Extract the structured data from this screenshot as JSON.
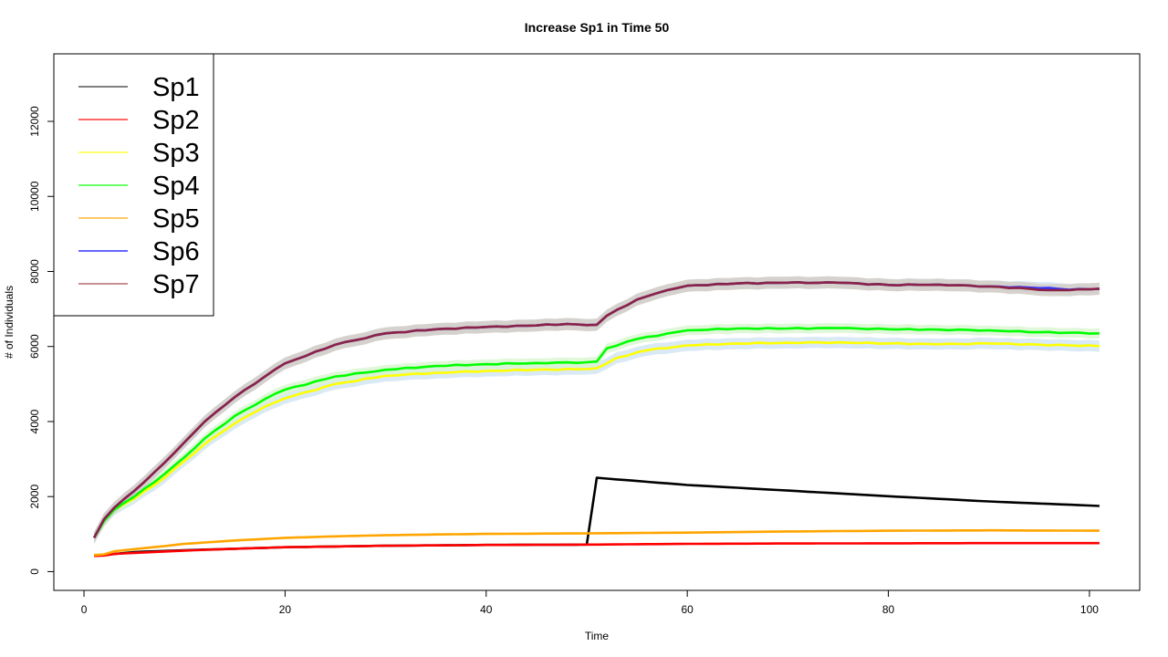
{
  "chart_data": {
    "type": "line",
    "title": "Increase Sp1 in Time 50",
    "xlabel": "Time",
    "ylabel": "# of Individuals",
    "xlim": [
      -3,
      105
    ],
    "ylim": [
      -500,
      13800
    ],
    "x_ticks": [
      0,
      20,
      40,
      60,
      80,
      100
    ],
    "y_ticks": [
      0,
      2000,
      4000,
      6000,
      8000,
      10000,
      12000
    ],
    "grid": false,
    "legend_position": "top-left",
    "series": [
      {
        "name": "Sp1",
        "color": "#000000",
        "legend_color": "#808080",
        "band_color": "#cfcfcf",
        "band": 0,
        "points": [
          [
            1,
            420
          ],
          [
            5,
            520
          ],
          [
            10,
            570
          ],
          [
            20,
            650
          ],
          [
            30,
            690
          ],
          [
            40,
            710
          ],
          [
            50,
            720
          ],
          [
            51,
            2500
          ],
          [
            60,
            2310
          ],
          [
            70,
            2160
          ],
          [
            80,
            2010
          ],
          [
            90,
            1870
          ],
          [
            101,
            1750
          ]
        ]
      },
      {
        "name": "Sp2",
        "color": "#ff0000",
        "legend_color": "#ff6666",
        "band_color": "#ffc4c4",
        "band": 20,
        "points": [
          [
            1,
            420
          ],
          [
            2,
            430
          ],
          [
            3,
            470
          ],
          [
            5,
            500
          ],
          [
            10,
            560
          ],
          [
            15,
            610
          ],
          [
            20,
            650
          ],
          [
            30,
            690
          ],
          [
            40,
            710
          ],
          [
            50,
            720
          ],
          [
            60,
            740
          ],
          [
            70,
            750
          ],
          [
            80,
            755
          ],
          [
            90,
            760
          ],
          [
            101,
            760
          ]
        ]
      },
      {
        "name": "Sp3",
        "color": "#ffff00",
        "legend_color": "#ffff66",
        "band_color": "#cfe3f2",
        "band": 150,
        "points": [
          [
            1,
            900
          ],
          [
            2,
            1350
          ],
          [
            3,
            1650
          ],
          [
            5,
            1950
          ],
          [
            8,
            2500
          ],
          [
            10,
            2950
          ],
          [
            12,
            3400
          ],
          [
            15,
            3950
          ],
          [
            18,
            4400
          ],
          [
            20,
            4620
          ],
          [
            25,
            5000
          ],
          [
            30,
            5220
          ],
          [
            35,
            5300
          ],
          [
            40,
            5350
          ],
          [
            45,
            5380
          ],
          [
            50,
            5400
          ],
          [
            51,
            5420
          ],
          [
            53,
            5700
          ],
          [
            56,
            5900
          ],
          [
            60,
            6030
          ],
          [
            65,
            6080
          ],
          [
            70,
            6100
          ],
          [
            75,
            6110
          ],
          [
            80,
            6080
          ],
          [
            85,
            6060
          ],
          [
            90,
            6080
          ],
          [
            95,
            6050
          ],
          [
            101,
            6010
          ]
        ]
      },
      {
        "name": "Sp4",
        "color": "#00ff00",
        "legend_color": "#66ff66",
        "band_color": "#d9f5d0",
        "band": 130,
        "points": [
          [
            1,
            900
          ],
          [
            2,
            1350
          ],
          [
            3,
            1650
          ],
          [
            5,
            2000
          ],
          [
            8,
            2600
          ],
          [
            10,
            3050
          ],
          [
            12,
            3550
          ],
          [
            15,
            4150
          ],
          [
            18,
            4600
          ],
          [
            20,
            4850
          ],
          [
            25,
            5200
          ],
          [
            30,
            5380
          ],
          [
            35,
            5480
          ],
          [
            40,
            5530
          ],
          [
            45,
            5560
          ],
          [
            50,
            5580
          ],
          [
            51,
            5600
          ],
          [
            52,
            5950
          ],
          [
            55,
            6200
          ],
          [
            60,
            6430
          ],
          [
            65,
            6480
          ],
          [
            70,
            6480
          ],
          [
            75,
            6490
          ],
          [
            80,
            6460
          ],
          [
            85,
            6450
          ],
          [
            90,
            6430
          ],
          [
            95,
            6380
          ],
          [
            101,
            6350
          ]
        ]
      },
      {
        "name": "Sp5",
        "color": "#ffa500",
        "legend_color": "#ffc966",
        "band_color": "#ffe4b3",
        "band": 20,
        "points": [
          [
            1,
            440
          ],
          [
            2,
            460
          ],
          [
            3,
            540
          ],
          [
            5,
            600
          ],
          [
            8,
            680
          ],
          [
            10,
            740
          ],
          [
            15,
            830
          ],
          [
            20,
            900
          ],
          [
            25,
            940
          ],
          [
            30,
            970
          ],
          [
            35,
            990
          ],
          [
            40,
            1005
          ],
          [
            50,
            1020
          ],
          [
            60,
            1040
          ],
          [
            70,
            1070
          ],
          [
            80,
            1090
          ],
          [
            90,
            1100
          ],
          [
            101,
            1090
          ]
        ]
      },
      {
        "name": "Sp6",
        "color": "#3333ff",
        "legend_color": "#6666ff",
        "band_color": "#cfe3f2",
        "band": 160,
        "points": [
          [
            1,
            900
          ],
          [
            2,
            1400
          ],
          [
            3,
            1700
          ],
          [
            5,
            2150
          ],
          [
            8,
            2900
          ],
          [
            10,
            3450
          ],
          [
            12,
            4000
          ],
          [
            15,
            4650
          ],
          [
            18,
            5200
          ],
          [
            20,
            5550
          ],
          [
            25,
            6050
          ],
          [
            30,
            6350
          ],
          [
            35,
            6460
          ],
          [
            40,
            6520
          ],
          [
            45,
            6560
          ],
          [
            48,
            6600
          ],
          [
            50,
            6570
          ],
          [
            51,
            6580
          ],
          [
            52,
            6820
          ],
          [
            55,
            7250
          ],
          [
            58,
            7500
          ],
          [
            60,
            7620
          ],
          [
            65,
            7680
          ],
          [
            70,
            7700
          ],
          [
            75,
            7700
          ],
          [
            80,
            7640
          ],
          [
            85,
            7650
          ],
          [
            90,
            7600
          ],
          [
            94,
            7570
          ],
          [
            96,
            7560
          ],
          [
            98,
            7510
          ],
          [
            101,
            7540
          ]
        ]
      },
      {
        "name": "Sp7",
        "color": "#8b2346",
        "legend_color": "#c89090",
        "band_color": "#d3cbc3",
        "band": 160,
        "points": [
          [
            1,
            900
          ],
          [
            2,
            1400
          ],
          [
            3,
            1700
          ],
          [
            5,
            2150
          ],
          [
            8,
            2900
          ],
          [
            10,
            3450
          ],
          [
            12,
            4000
          ],
          [
            15,
            4650
          ],
          [
            18,
            5200
          ],
          [
            20,
            5550
          ],
          [
            25,
            6050
          ],
          [
            30,
            6350
          ],
          [
            35,
            6460
          ],
          [
            40,
            6520
          ],
          [
            45,
            6560
          ],
          [
            48,
            6600
          ],
          [
            50,
            6570
          ],
          [
            51,
            6580
          ],
          [
            52,
            6820
          ],
          [
            55,
            7250
          ],
          [
            58,
            7500
          ],
          [
            60,
            7620
          ],
          [
            65,
            7680
          ],
          [
            70,
            7700
          ],
          [
            75,
            7700
          ],
          [
            80,
            7640
          ],
          [
            85,
            7650
          ],
          [
            90,
            7600
          ],
          [
            94,
            7540
          ],
          [
            96,
            7500
          ],
          [
            98,
            7500
          ],
          [
            101,
            7540
          ]
        ]
      }
    ]
  }
}
